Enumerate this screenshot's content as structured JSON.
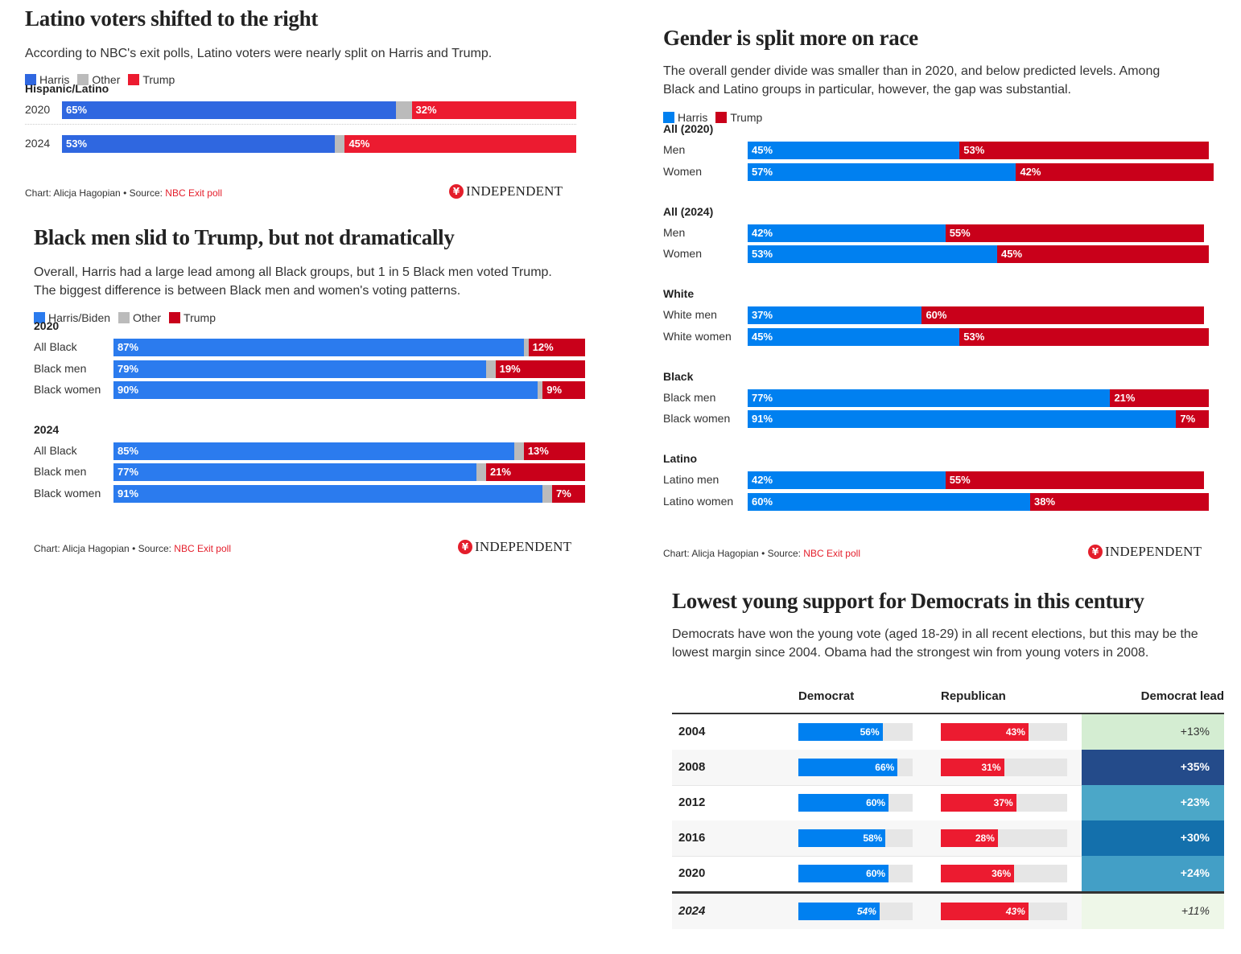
{
  "chart_data": [
    {
      "type": "bar",
      "orientation": "horizontal-stacked",
      "title": "Latino voters shifted to the right",
      "subtitle": "According to NBC's exit polls, Latino voters were nearly split on Harris and Trump.",
      "legend": [
        {
          "name": "Harris",
          "color": "#2f67e0"
        },
        {
          "name": "Other",
          "color": "#bbbbbb"
        },
        {
          "name": "Trump",
          "color": "#ec1b30"
        }
      ],
      "groups": [
        {
          "label": "Hispanic/Latino",
          "rows": [
            {
              "label": "2020",
              "harris": 65,
              "other": 3,
              "trump": 32
            },
            {
              "label": "2024",
              "harris": 53,
              "other": 2,
              "trump": 45
            }
          ]
        }
      ],
      "credit": "Chart: Alicja Hagopian • Source: ",
      "source": "NBC Exit poll",
      "logo": "INDEPENDENT"
    },
    {
      "type": "bar",
      "orientation": "horizontal-stacked",
      "title": "Black men slid to Trump, but not dramatically",
      "subtitle_lines": [
        "Overall, Harris had a large lead among all Black groups, but 1 in 5 Black men voted Trump.",
        "The biggest difference is between Black men and women's voting patterns."
      ],
      "legend": [
        {
          "name": "Harris/Biden",
          "color": "#2b7bee"
        },
        {
          "name": "Other",
          "color": "#bbbbbb"
        },
        {
          "name": "Trump",
          "color": "#c9001a"
        }
      ],
      "groups": [
        {
          "label": "2020",
          "rows": [
            {
              "label": "All Black",
              "harris": 87,
              "other": 1,
              "trump": 12
            },
            {
              "label": "Black men",
              "harris": 79,
              "other": 2,
              "trump": 19
            },
            {
              "label": "Black women",
              "harris": 90,
              "other": 1,
              "trump": 9
            }
          ]
        },
        {
          "label": "2024",
          "rows": [
            {
              "label": "All Black",
              "harris": 85,
              "other": 2,
              "trump": 13
            },
            {
              "label": "Black men",
              "harris": 77,
              "other": 2,
              "trump": 21
            },
            {
              "label": "Black women",
              "harris": 91,
              "other": 2,
              "trump": 7
            }
          ]
        }
      ],
      "credit": "Chart: Alicja Hagopian • Source: ",
      "source": "NBC Exit poll",
      "logo": "INDEPENDENT"
    },
    {
      "type": "bar",
      "orientation": "horizontal-stacked",
      "title": "Gender is split more on race",
      "subtitle_lines": [
        "The overall gender divide was smaller than in 2020, and below predicted levels. Among",
        "Black and Latino groups in particular, however, the gap was substantial."
      ],
      "legend": [
        {
          "name": "Harris",
          "color": "#0080f0"
        },
        {
          "name": "Trump",
          "color": "#c9001a"
        }
      ],
      "groups": [
        {
          "label": "All (2020)",
          "rows": [
            {
              "label": "Men",
              "harris": 45,
              "trump": 53
            },
            {
              "label": "Women",
              "harris": 57,
              "trump": 42
            }
          ]
        },
        {
          "label": "All (2024)",
          "rows": [
            {
              "label": "Men",
              "harris": 42,
              "trump": 55
            },
            {
              "label": "Women",
              "harris": 53,
              "trump": 45
            }
          ]
        },
        {
          "label": "White",
          "rows": [
            {
              "label": "White men",
              "harris": 37,
              "trump": 60
            },
            {
              "label": "White women",
              "harris": 45,
              "trump": 53
            }
          ]
        },
        {
          "label": "Black",
          "rows": [
            {
              "label": "Black men",
              "harris": 77,
              "trump": 21
            },
            {
              "label": "Black women",
              "harris": 91,
              "trump": 7
            }
          ]
        },
        {
          "label": "Latino",
          "rows": [
            {
              "label": "Latino men",
              "harris": 42,
              "trump": 55
            },
            {
              "label": "Latino women",
              "harris": 60,
              "trump": 38
            }
          ]
        }
      ],
      "credit": "Chart: Alicja Hagopian • Source: ",
      "source": "NBC Exit poll",
      "logo": "INDEPENDENT"
    },
    {
      "type": "table",
      "title": "Lowest young support for Democrats in this century",
      "subtitle_lines": [
        "Democrats have won the young vote (aged 18-29) in all recent elections, but this may be the",
        "lowest margin since 2004. Obama had the strongest win from young voters in 2008."
      ],
      "columns": [
        "",
        "Democrat",
        "Republican",
        "Democrat lead"
      ],
      "dem_color": "#0080f0",
      "rep_color": "#ec1b30",
      "rows": [
        {
          "year": "2004",
          "dem": 56,
          "rep": 43,
          "lead": "+13%",
          "lead_bg": "#d4edd2",
          "lead_fg": "#333333"
        },
        {
          "year": "2008",
          "dem": 66,
          "rep": 31,
          "lead": "+35%",
          "lead_bg": "#244b8a",
          "lead_fg": "#ffffff"
        },
        {
          "year": "2012",
          "dem": 60,
          "rep": 37,
          "lead": "+23%",
          "lead_bg": "#4ba7c8",
          "lead_fg": "#ffffff"
        },
        {
          "year": "2016",
          "dem": 58,
          "rep": 28,
          "lead": "+30%",
          "lead_bg": "#1470ac",
          "lead_fg": "#ffffff"
        },
        {
          "year": "2020",
          "dem": 60,
          "rep": 36,
          "lead": "+24%",
          "lead_bg": "#439fc6",
          "lead_fg": "#ffffff"
        },
        {
          "year": "2024",
          "dem": 54,
          "rep": 43,
          "lead": "+11%",
          "lead_bg": "#eef7e8",
          "lead_fg": "#333333",
          "italic": true
        }
      ],
      "bar_max": 70
    }
  ]
}
